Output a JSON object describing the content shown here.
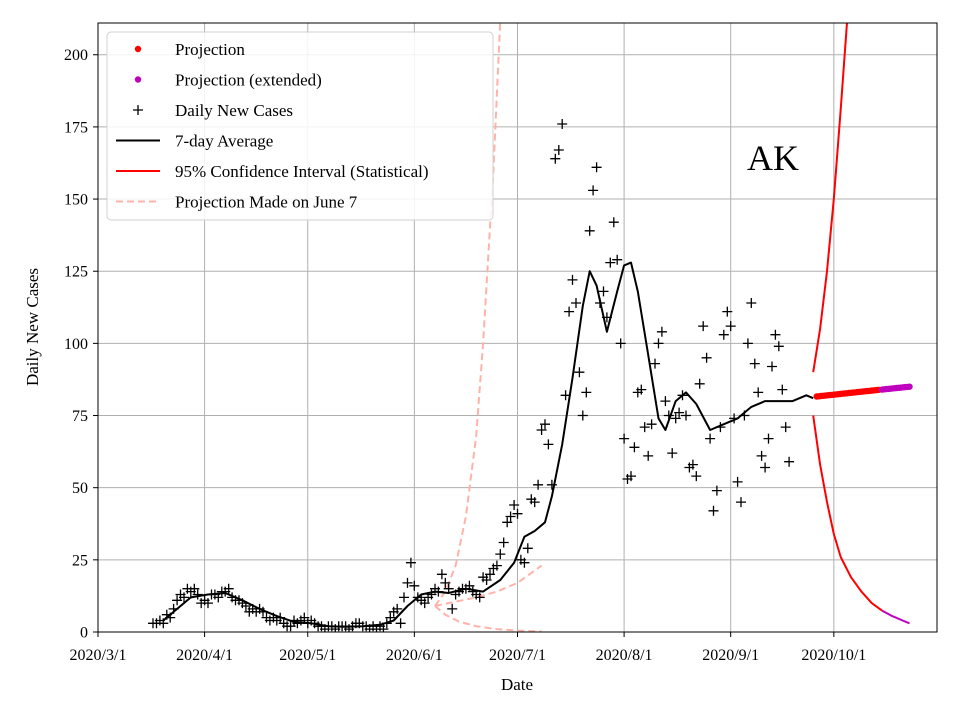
{
  "chart_data": {
    "type": "scatter",
    "title": "",
    "annotation": "AK",
    "xlabel": "Date",
    "ylabel": "Daily New Cases",
    "xlim": [
      "2020-03-01",
      "2020-10-31"
    ],
    "ylim": [
      0,
      211
    ],
    "grid": true,
    "legend_position": "top-left",
    "x_ticks": [
      "2020/3/1",
      "2020/4/1",
      "2020/5/1",
      "2020/6/1",
      "2020/7/1",
      "2020/8/1",
      "2020/9/1",
      "2020/10/1"
    ],
    "y_ticks": [
      0,
      25,
      50,
      75,
      100,
      125,
      150,
      175,
      200
    ],
    "colors": {
      "projection": "#ff0000",
      "projection_extended": "#bf00bf",
      "daily": "#000000",
      "average": "#000000",
      "ci": "#ff0000",
      "ci_extended": "#bf00bf",
      "june7": "#ffb3a8"
    },
    "legend": [
      {
        "key": "projection",
        "label": "Projection",
        "style": "dot-red"
      },
      {
        "key": "projection_extended",
        "label": "Projection (extended)",
        "style": "dot-purple"
      },
      {
        "key": "daily",
        "label": "Daily New Cases",
        "style": "plus"
      },
      {
        "key": "average",
        "label": "7-day Average",
        "style": "line-black"
      },
      {
        "key": "ci",
        "label": "95% Confidence Interval (Statistical)",
        "style": "line-red"
      },
      {
        "key": "june7",
        "label": "Projection Made on June 7",
        "style": "dash-pink"
      }
    ],
    "series": [
      {
        "name": "Daily New Cases",
        "x_start": "2020-03-17",
        "values": [
          3,
          3,
          4,
          3,
          6,
          5,
          8,
          11,
          13,
          12,
          15,
          14,
          15,
          13,
          10,
          11,
          10,
          13,
          13,
          12,
          14,
          14,
          15,
          12,
          11,
          11,
          10,
          9,
          7,
          8,
          7,
          8,
          7,
          5,
          4,
          5,
          4,
          5,
          3,
          2,
          2,
          4,
          3,
          4,
          5,
          3,
          4,
          3,
          2,
          2,
          1,
          2,
          2,
          1,
          2,
          2,
          2,
          1,
          2,
          3,
          3,
          2,
          2,
          1,
          2,
          1,
          2,
          1,
          3,
          5,
          7,
          8,
          3,
          12,
          17,
          24,
          16,
          12,
          11,
          10,
          12,
          13,
          15,
          14,
          20,
          17,
          15,
          8,
          13,
          14,
          15,
          15,
          16,
          14,
          13,
          12,
          19,
          18,
          20,
          22,
          23,
          27,
          31,
          38,
          40,
          44,
          41,
          25,
          24,
          29,
          46,
          45,
          51,
          70,
          72,
          65,
          51,
          164,
          167,
          176,
          82,
          111,
          122,
          114,
          90,
          75,
          83,
          139,
          153,
          161,
          114,
          118,
          109,
          128,
          142,
          129,
          100,
          67,
          53,
          54,
          64,
          83,
          84,
          71,
          61,
          72,
          93,
          100,
          104,
          80,
          75,
          62,
          74,
          76,
          82,
          75,
          57,
          58,
          54,
          86,
          106,
          95,
          67,
          42,
          49,
          71,
          103,
          111,
          106,
          74,
          52,
          45,
          75,
          100,
          114,
          93,
          83,
          61,
          57,
          67,
          92,
          103,
          99,
          84,
          71,
          59
        ]
      },
      {
        "name": "7-day Average",
        "points": [
          [
            "2020-03-20",
            4
          ],
          [
            "2020-03-24",
            8
          ],
          [
            "2020-03-28",
            12
          ],
          [
            "2020-04-02",
            13
          ],
          [
            "2020-04-07",
            13.5
          ],
          [
            "2020-04-12",
            11
          ],
          [
            "2020-04-17",
            8
          ],
          [
            "2020-04-22",
            5.5
          ],
          [
            "2020-04-27",
            3.5
          ],
          [
            "2020-05-02",
            3
          ],
          [
            "2020-05-07",
            2
          ],
          [
            "2020-05-12",
            1.8
          ],
          [
            "2020-05-17",
            2
          ],
          [
            "2020-05-22",
            2.5
          ],
          [
            "2020-05-26",
            4
          ],
          [
            "2020-05-30",
            9
          ],
          [
            "2020-06-03",
            13
          ],
          [
            "2020-06-07",
            14
          ],
          [
            "2020-06-11",
            13.5
          ],
          [
            "2020-06-16",
            15
          ],
          [
            "2020-06-21",
            14
          ],
          [
            "2020-06-26",
            18
          ],
          [
            "2020-06-30",
            24
          ],
          [
            "2020-07-03",
            33
          ],
          [
            "2020-07-06",
            35
          ],
          [
            "2020-07-09",
            38
          ],
          [
            "2020-07-11",
            47
          ],
          [
            "2020-07-14",
            65
          ],
          [
            "2020-07-17",
            88
          ],
          [
            "2020-07-20",
            113
          ],
          [
            "2020-07-22",
            125
          ],
          [
            "2020-07-24",
            120
          ],
          [
            "2020-07-27",
            104
          ],
          [
            "2020-07-30",
            118
          ],
          [
            "2020-08-01",
            127
          ],
          [
            "2020-08-03",
            128
          ],
          [
            "2020-08-05",
            118
          ],
          [
            "2020-08-08",
            96
          ],
          [
            "2020-08-11",
            74
          ],
          [
            "2020-08-13",
            70
          ],
          [
            "2020-08-16",
            80
          ],
          [
            "2020-08-19",
            83
          ],
          [
            "2020-08-22",
            79
          ],
          [
            "2020-08-26",
            70
          ],
          [
            "2020-08-30",
            72
          ],
          [
            "2020-09-03",
            74
          ],
          [
            "2020-09-07",
            78
          ],
          [
            "2020-09-11",
            80
          ],
          [
            "2020-09-15",
            80
          ],
          [
            "2020-09-19",
            80
          ],
          [
            "2020-09-23",
            82
          ],
          [
            "2020-09-25",
            81
          ]
        ]
      },
      {
        "name": "Projection",
        "x_start": "2020-09-26",
        "x_end": "2020-10-14",
        "y_start": 81.6,
        "y_end": 83.9,
        "count": 30
      },
      {
        "name": "Projection (extended)",
        "x_start": "2020-10-15",
        "x_end": "2020-10-23",
        "y_start": 84.0,
        "y_end": 85.0,
        "count": 14
      },
      {
        "name": "95% Confidence Interval (Statistical) upper",
        "points": [
          [
            "2020-09-25",
            90
          ],
          [
            "2020-09-27",
            105
          ],
          [
            "2020-09-29",
            125
          ],
          [
            "2020-10-01",
            150
          ],
          [
            "2020-10-03",
            181
          ],
          [
            "2020-10-05",
            214
          ]
        ]
      },
      {
        "name": "95% Confidence Interval (Statistical) lower",
        "points": [
          [
            "2020-09-25",
            75
          ],
          [
            "2020-09-27",
            58
          ],
          [
            "2020-09-29",
            45
          ],
          [
            "2020-10-01",
            34
          ],
          [
            "2020-10-03",
            26
          ],
          [
            "2020-10-06",
            19
          ],
          [
            "2020-10-09",
            14
          ],
          [
            "2020-10-12",
            10
          ],
          [
            "2020-10-15",
            7.4
          ]
        ]
      },
      {
        "name": "95% Confidence Interval extended lower",
        "points": [
          [
            "2020-10-15",
            7.4
          ],
          [
            "2020-10-18",
            5.5
          ],
          [
            "2020-10-21",
            4
          ],
          [
            "2020-10-23",
            3
          ]
        ]
      },
      {
        "name": "Projection Made on June 7 upper",
        "points": [
          [
            "2020-06-07",
            9
          ],
          [
            "2020-06-10",
            14
          ],
          [
            "2020-06-13",
            23
          ],
          [
            "2020-06-16",
            40
          ],
          [
            "2020-06-19",
            68
          ],
          [
            "2020-06-21",
            100
          ],
          [
            "2020-06-24",
            160
          ],
          [
            "2020-06-26",
            212
          ]
        ]
      },
      {
        "name": "Projection Made on June 7 middle",
        "points": [
          [
            "2020-06-07",
            9
          ],
          [
            "2020-06-13",
            10.5
          ],
          [
            "2020-06-19",
            12
          ],
          [
            "2020-06-25",
            14
          ],
          [
            "2020-07-01",
            17
          ],
          [
            "2020-07-08",
            23
          ]
        ]
      },
      {
        "name": "Projection Made on June 7 lower",
        "points": [
          [
            "2020-06-07",
            9
          ],
          [
            "2020-06-10",
            6
          ],
          [
            "2020-06-14",
            3.6
          ],
          [
            "2020-06-19",
            2
          ],
          [
            "2020-06-25",
            1
          ],
          [
            "2020-07-01",
            0.5
          ],
          [
            "2020-07-08",
            0.2
          ]
        ]
      }
    ]
  }
}
